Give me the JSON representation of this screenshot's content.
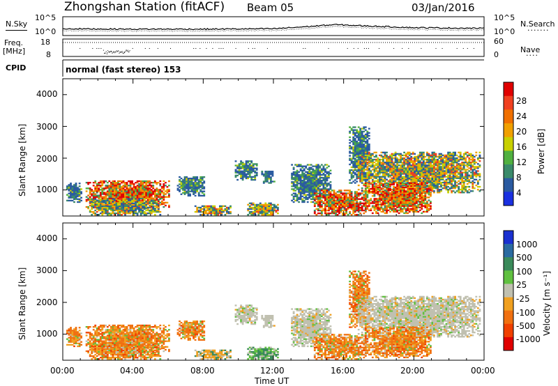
{
  "header": {
    "station": "Zhongshan Station (fitACF)",
    "beam": "Beam 05",
    "date": "03/Jan/2016"
  },
  "sky_panel": {
    "left_label": "N.Sky",
    "left_ticks": [
      "10^5",
      "10^0"
    ],
    "right_label": "N.Search",
    "right_ticks": [
      "10^5",
      "10^0"
    ]
  },
  "freq_panel": {
    "left_label_line1": "Freq.",
    "left_label_line2": "[MHz]",
    "left_ticks": [
      "18",
      "8"
    ],
    "right_label": "Nave",
    "right_ticks": [
      "60",
      "0"
    ]
  },
  "cpid_panel": {
    "label": "CPID",
    "text": "normal (fast stereo) 153"
  },
  "axes": {
    "ylabel": "Slant Range [km]",
    "xlabel": "Time UT",
    "y_ticks": [
      "4000",
      "3000",
      "2000",
      "1000"
    ],
    "x_ticks": [
      "00:00",
      "04:00",
      "08:00",
      "12:00",
      "16:00",
      "20:00",
      "00:00"
    ]
  },
  "power_colorbar": {
    "label": "Power [dB]",
    "ticks": [
      "28",
      "24",
      "20",
      "16",
      "12",
      "8",
      "4"
    ],
    "colors": [
      "#e00000",
      "#f04020",
      "#f07000",
      "#f0a000",
      "#c8d000",
      "#50b040",
      "#3a8a6a",
      "#2a5aa0",
      "#1a30e0"
    ]
  },
  "velocity_colorbar": {
    "label": "Velocity [m s⁻¹]",
    "ticks": [
      "1000",
      "500",
      "100",
      "25",
      "-25",
      "-100",
      "-500",
      "-1000"
    ],
    "colors": [
      "#1a30d0",
      "#2a6aa0",
      "#3a8a5a",
      "#60c040",
      "#c0c0b0",
      "#f0a020",
      "#f07010",
      "#f04000",
      "#e00000"
    ]
  },
  "chart_data": {
    "type": "heatmap",
    "x_range_hours": [
      0,
      24
    ],
    "y_range_km": [
      180,
      4500
    ],
    "power_clusters": [
      {
        "t0": 0.2,
        "t1": 1.0,
        "r0": 600,
        "r1": 1200,
        "level": "low"
      },
      {
        "t0": 1.3,
        "t1": 6.0,
        "r0": 400,
        "r1": 1300,
        "level": "high"
      },
      {
        "t0": 1.5,
        "t1": 5.5,
        "r0": 200,
        "r1": 700,
        "level": "mid"
      },
      {
        "t0": 6.5,
        "t1": 8.0,
        "r0": 800,
        "r1": 1400,
        "level": "low"
      },
      {
        "t0": 7.5,
        "t1": 9.5,
        "r0": 200,
        "r1": 500,
        "level": "mid"
      },
      {
        "t0": 9.8,
        "t1": 11.0,
        "r0": 1300,
        "r1": 1900,
        "level": "low"
      },
      {
        "t0": 10.5,
        "t1": 12.2,
        "r0": 200,
        "r1": 600,
        "level": "mid"
      },
      {
        "t0": 11.3,
        "t1": 12.0,
        "r0": 1200,
        "r1": 1600,
        "level": "low"
      },
      {
        "t0": 13.0,
        "t1": 15.2,
        "r0": 600,
        "r1": 1800,
        "level": "low"
      },
      {
        "t0": 14.3,
        "t1": 17.3,
        "r0": 200,
        "r1": 1000,
        "level": "high"
      },
      {
        "t0": 16.3,
        "t1": 17.5,
        "r0": 1200,
        "r1": 3000,
        "level": "low"
      },
      {
        "t0": 16.8,
        "t1": 23.8,
        "r0": 900,
        "r1": 2200,
        "level": "mid"
      },
      {
        "t0": 17.2,
        "t1": 21.0,
        "r0": 250,
        "r1": 1200,
        "level": "high"
      }
    ],
    "velocity_clusters": [
      {
        "t0": 0.2,
        "t1": 1.0,
        "r0": 600,
        "r1": 1200,
        "level": "neg"
      },
      {
        "t0": 1.3,
        "t1": 6.0,
        "r0": 400,
        "r1": 1300,
        "level": "neg"
      },
      {
        "t0": 1.5,
        "t1": 5.5,
        "r0": 200,
        "r1": 700,
        "level": "neg"
      },
      {
        "t0": 6.5,
        "t1": 8.0,
        "r0": 800,
        "r1": 1400,
        "level": "neg"
      },
      {
        "t0": 7.5,
        "t1": 9.5,
        "r0": 200,
        "r1": 500,
        "level": "mix"
      },
      {
        "t0": 9.8,
        "t1": 11.0,
        "r0": 1300,
        "r1": 1900,
        "level": "gray"
      },
      {
        "t0": 10.5,
        "t1": 12.2,
        "r0": 200,
        "r1": 600,
        "level": "pos"
      },
      {
        "t0": 11.3,
        "t1": 12.0,
        "r0": 1200,
        "r1": 1600,
        "level": "gray"
      },
      {
        "t0": 13.0,
        "t1": 15.2,
        "r0": 600,
        "r1": 1800,
        "level": "gray"
      },
      {
        "t0": 14.3,
        "t1": 17.3,
        "r0": 200,
        "r1": 1000,
        "level": "neg"
      },
      {
        "t0": 16.3,
        "t1": 17.5,
        "r0": 1200,
        "r1": 3000,
        "level": "neg"
      },
      {
        "t0": 16.8,
        "t1": 23.8,
        "r0": 900,
        "r1": 2200,
        "level": "gray"
      },
      {
        "t0": 17.2,
        "t1": 21.0,
        "r0": 250,
        "r1": 1200,
        "level": "neg"
      }
    ],
    "n_sky_trace_log10": [
      {
        "t": 0,
        "v": 1.8
      },
      {
        "t": 4,
        "v": 1.7
      },
      {
        "t": 8,
        "v": 1.7
      },
      {
        "t": 12,
        "v": 1.8
      },
      {
        "t": 14,
        "v": 2.4
      },
      {
        "t": 15.5,
        "v": 2.9
      },
      {
        "t": 17,
        "v": 2.6
      },
      {
        "t": 20,
        "v": 2.1
      },
      {
        "t": 24,
        "v": 1.9
      }
    ],
    "freq_mhz": 16,
    "nave_dip": {
      "t0": 2.3,
      "t1": 3.8
    }
  }
}
